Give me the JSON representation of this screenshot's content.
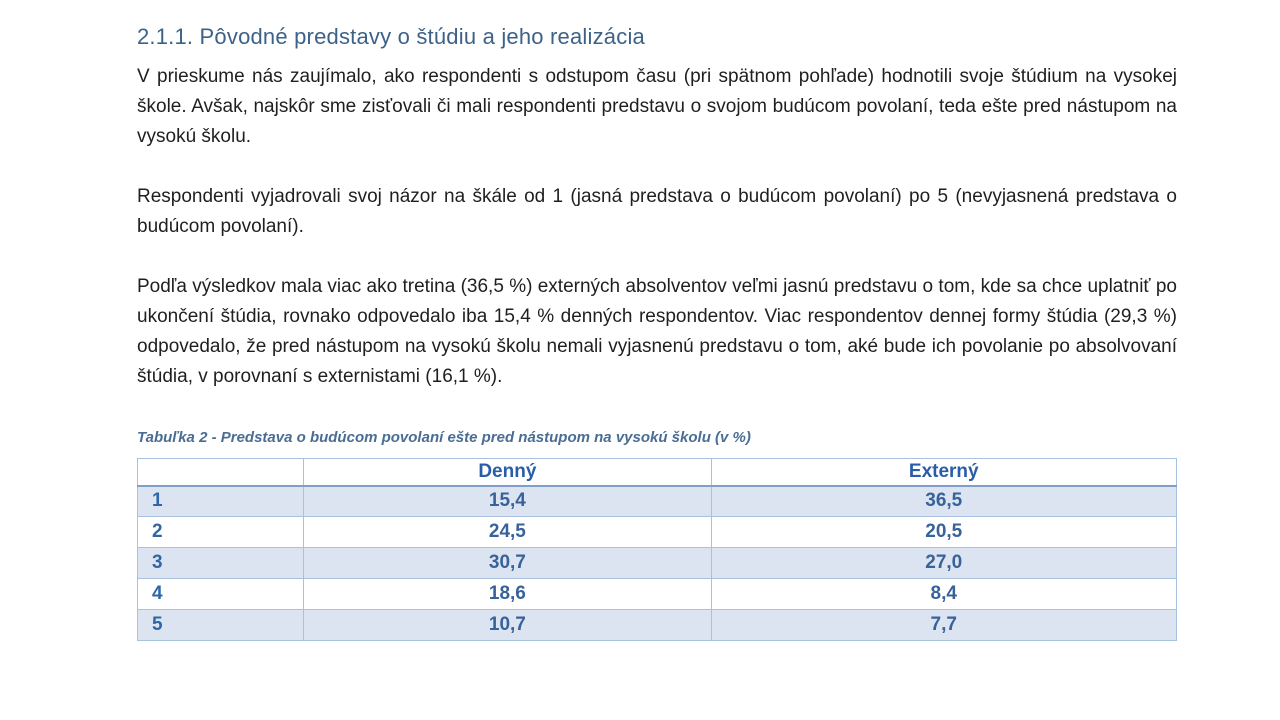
{
  "document": {
    "heading": "2.1.1. Pôvodné predstavy o štúdiu a jeho realizácia",
    "paragraphs": [
      "V prieskume nás zaujímalo, ako respondenti s odstupom času (pri spätnom pohľade) hodnotili svoje štúdium na vysokej škole. Avšak, najskôr sme zisťovali či mali respondenti predstavu o svojom budúcom povolaní, teda ešte pred nástupom na vysokú školu.",
      "Respondenti vyjadrovali svoj názor na škále od 1 (jasná predstava o budúcom povolaní) po 5 (nevyjasnená predstava o budúcom povolaní).",
      "Podľa výsledkov mala viac ako tretina (36,5 %) externých absolventov veľmi jasnú predstavu o tom, kde sa chce uplatniť po ukončení štúdia, rovnako odpovedalo iba 15,4 % denných respondentov. Viac respondentov dennej formy štúdia (29,3 %) odpovedalo, že pred nástupom na vysokú školu nemali vyjasnenú predstavu o tom, aké bude ich povolanie po absolvovaní štúdia, v porovnaní s externistami (16,1 %)."
    ],
    "table_caption": "Tabuľka 2 - Predstava o budúcom povolaní ešte pred nástupom na vysokú školu (v %)"
  },
  "table": {
    "columns": [
      "",
      "Denný",
      "Externý"
    ],
    "rows": [
      {
        "label": "1",
        "denny": "15,4",
        "externy": "36,5"
      },
      {
        "label": "2",
        "denny": "24,5",
        "externy": "20,5"
      },
      {
        "label": "3",
        "denny": "30,7",
        "externy": "27,0"
      },
      {
        "label": "4",
        "denny": "18,6",
        "externy": "8,4"
      },
      {
        "label": "5",
        "denny": "10,7",
        "externy": "7,7"
      }
    ]
  },
  "colors": {
    "heading_blue": "#3d6288",
    "caption_blue": "#4a6d94",
    "table_header_blue": "#2a5da8",
    "table_value_blue": "#37629a",
    "band_fill": "#dbe4f0",
    "border_light": "#a9c1e0",
    "border_header": "#7f9fca"
  }
}
